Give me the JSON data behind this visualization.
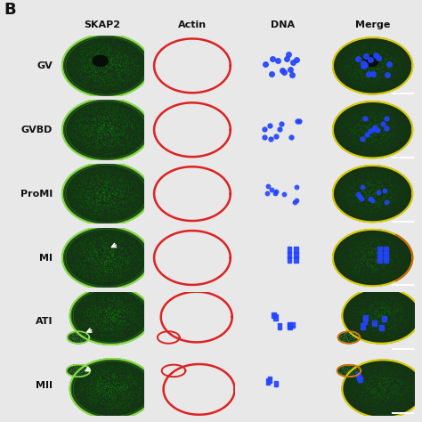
{
  "title_label": "B",
  "col_headers": [
    "SKAP2",
    "Actin",
    "DNA",
    "Merge"
  ],
  "row_labels": [
    "GV",
    "GVBD",
    "ProMI",
    "MI",
    "ATI",
    "MII"
  ],
  "fig_bg": "#e8e8e8",
  "panel_bg": "#000000",
  "header_fontsize": 8,
  "label_fontsize": 8,
  "title_fontsize": 13,
  "green_fill": "#1a5c1a",
  "green_bright": "#3aaa3a",
  "green_outline": "#88dd44",
  "red_outline": "#dd2222",
  "yellow_outline": "#ddcc00",
  "blue_dna": "#2244ff",
  "white_arrow": "#ffffff",
  "n_rows": 6,
  "n_cols": 4
}
